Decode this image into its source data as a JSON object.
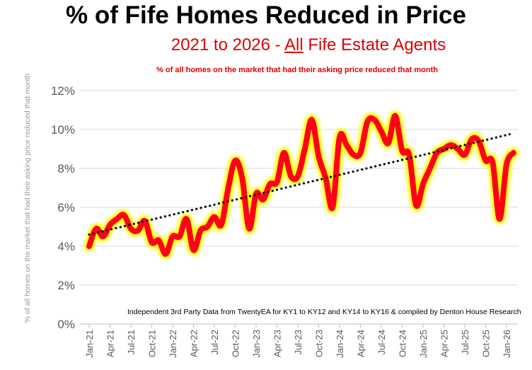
{
  "chart_data": {
    "type": "line",
    "title": "% of Fife Homes Reduced in Price",
    "subtitle_pre": "2021 to 2026 - ",
    "subtitle_underlined": "All",
    "subtitle_post": " Fife Estate Agents",
    "description": "% of all homes on the market that had their asking price reduced that month",
    "ylabel": "% of all homes on the market that had their asking price reduced that month",
    "source_note": "Independent 3rd Party Data from TwentyEA for KY1 to KY12 and KY14 to KY16 & compiled by Denton House Research",
    "ylim": [
      0,
      12
    ],
    "yticks": [
      "0%",
      "2%",
      "4%",
      "6%",
      "8%",
      "10%",
      "12%"
    ],
    "xtick_labels": [
      "Jan-21",
      "Apr-21",
      "Jul-21",
      "Oct-21",
      "Jan-22",
      "Apr-22",
      "Jul-22",
      "Oct-22",
      "Jan-23",
      "Apr-23",
      "Jul-23",
      "Oct-23",
      "Jan-24",
      "Apr-24",
      "Jul-24",
      "Oct-24",
      "Jan-25",
      "Apr-25",
      "Jul-25",
      "Oct-25",
      "Jan-26"
    ],
    "grid": true,
    "x_start": "Jan-21",
    "x_end": "Feb-26",
    "series": [
      {
        "values": [
          4.0,
          4.9,
          4.5,
          5.1,
          5.4,
          5.6,
          4.9,
          4.8,
          5.3,
          4.2,
          4.3,
          3.6,
          4.5,
          4.5,
          5.4,
          3.8,
          4.8,
          5.0,
          5.5,
          5.1,
          7.0,
          8.4,
          7.5,
          4.9,
          6.7,
          6.4,
          7.2,
          7.3,
          8.8,
          7.6,
          7.6,
          9.0,
          10.5,
          8.6,
          7.5,
          6.0,
          9.6,
          9.2,
          8.7,
          8.8,
          10.4,
          10.5,
          9.9,
          9.3,
          10.7,
          8.9,
          8.7,
          6.1,
          7.2,
          8.0,
          8.8,
          9.0,
          9.2,
          9.0,
          8.7,
          9.5,
          9.4,
          8.4,
          8.3,
          5.4,
          8.2,
          8.8
        ],
        "color": "#ff0018",
        "glow_color": "#ffff00"
      }
    ],
    "trendline": {
      "type": "linear",
      "start": 4.6,
      "end": 9.8,
      "color": "#000000",
      "style": "dotted"
    }
  }
}
